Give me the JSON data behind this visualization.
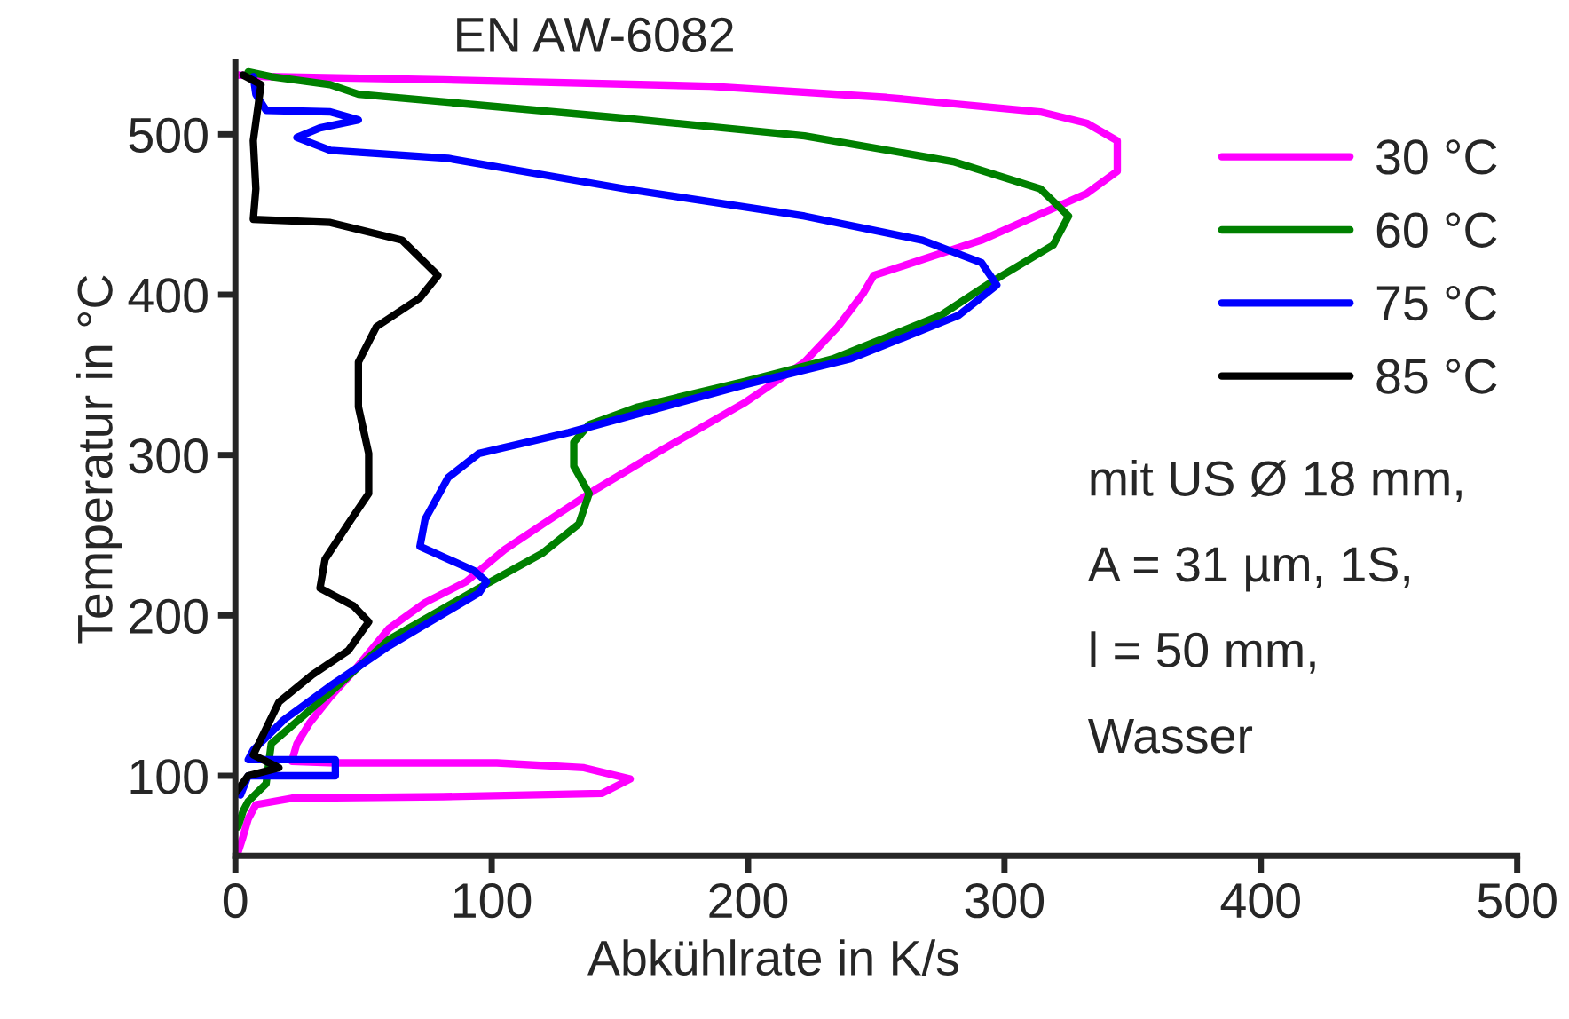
{
  "chart_data": {
    "type": "line",
    "title": "EN AW-6082",
    "xlabel": "Abkühlrate in K/s",
    "ylabel": "Temperatur in °C",
    "xlim": [
      0,
      500
    ],
    "ylim": [
      50,
      545
    ],
    "xticks": [
      0,
      100,
      200,
      300,
      400,
      500
    ],
    "yticks": [
      100,
      200,
      300,
      400,
      500
    ],
    "grid": false,
    "legend": "top right",
    "line_style": "solid",
    "marker": "none",
    "annotations": [
      "mit US Ø 18 mm,",
      "A = 31 µm, 1S,",
      "l = 50 mm,",
      "Wasser"
    ],
    "series": [
      {
        "name": "30 °C",
        "color": "#ff00ff",
        "x": [
          1,
          3,
          5,
          8,
          22,
          81,
          143,
          154,
          136,
          102,
          39,
          22,
          24,
          29,
          37,
          46,
          60,
          74,
          90,
          105,
          120,
          141,
          164,
          199,
          222,
          235,
          245,
          249,
          291,
          332,
          344,
          344,
          332,
          314,
          254,
          185,
          81,
          12,
          1
        ],
        "values": [
          52,
          62,
          73,
          82,
          86,
          87,
          89,
          98,
          105,
          108,
          108,
          109,
          120,
          133,
          149,
          165,
          192,
          208,
          221,
          241,
          257,
          279,
          301,
          333,
          358,
          380,
          401,
          412,
          434,
          463,
          477,
          496,
          507,
          514,
          523,
          530,
          534,
          536,
          537
        ]
      },
      {
        "name": "60 °C",
        "color": "#008000",
        "x": [
          1,
          3,
          5,
          12,
          14,
          37,
          60,
          95,
          120,
          134,
          138,
          132,
          132,
          138,
          157,
          199,
          233,
          275,
          296,
          319,
          325,
          314,
          280,
          222,
          152,
          83,
          48,
          37,
          14,
          5
        ],
        "values": [
          68,
          78,
          84,
          95,
          120,
          152,
          185,
          217,
          239,
          257,
          276,
          293,
          308,
          319,
          330,
          346,
          360,
          387,
          409,
          431,
          449,
          466,
          483,
          499,
          510,
          520,
          525,
          531,
          536,
          539
        ]
      },
      {
        "name": "75 °C",
        "color": "#0000ff",
        "x": [
          2,
          5,
          39,
          39,
          5,
          7,
          19,
          37,
          60,
          95,
          98,
          93,
          72,
          74,
          83,
          95,
          130,
          199,
          240,
          282,
          297,
          291,
          268,
          222,
          152,
          83,
          37,
          24,
          33,
          48,
          37,
          12,
          8,
          7
        ],
        "values": [
          88,
          100,
          100,
          110,
          110,
          116,
          135,
          156,
          181,
          214,
          221,
          228,
          243,
          260,
          286,
          301,
          314,
          344,
          360,
          387,
          406,
          420,
          434,
          449,
          466,
          485,
          490,
          498,
          504,
          509,
          514,
          515,
          525,
          536
        ]
      },
      {
        "name": "85 °C",
        "color": "#000000",
        "x": [
          0,
          5,
          17,
          7,
          17,
          30,
          44,
          52,
          46,
          33,
          35,
          44,
          52,
          52,
          48,
          48,
          55,
          72,
          79,
          65,
          37,
          7,
          8,
          7,
          10,
          3
        ],
        "values": [
          89,
          100,
          105,
          113,
          146,
          163,
          178,
          196,
          206,
          217,
          235,
          257,
          276,
          301,
          330,
          358,
          380,
          398,
          412,
          434,
          445,
          447,
          466,
          496,
          531,
          537
        ]
      }
    ]
  }
}
